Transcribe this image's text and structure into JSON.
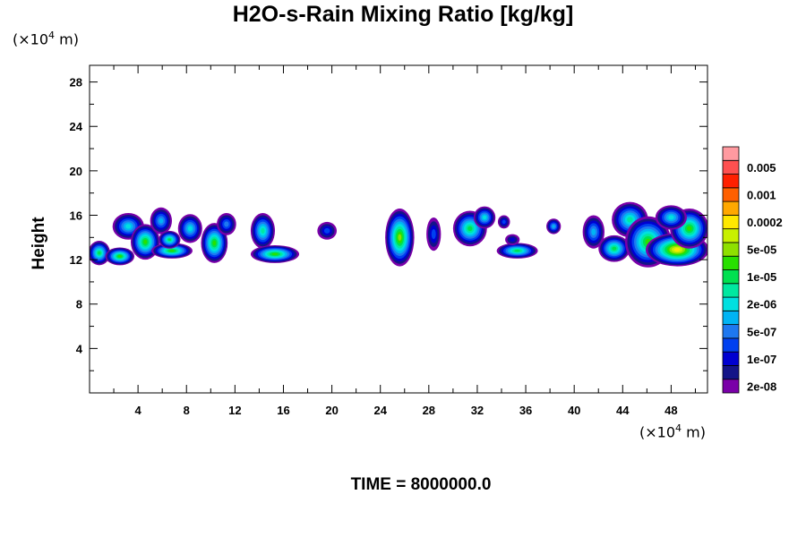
{
  "chart_data": {
    "type": "heatmap",
    "title": "H2O-s-Rain Mixing Ratio [kg/kg]",
    "xlabel": "",
    "ylabel": "Height",
    "x_unit_prefix": "(×10",
    "x_unit_exp": "4",
    "x_unit_suffix": " m)",
    "y_unit_prefix": "(×10",
    "y_unit_exp": "4",
    "y_unit_suffix": " m)",
    "xlim": [
      0,
      51
    ],
    "ylim": [
      0,
      29.5
    ],
    "xticks": [
      4,
      8,
      12,
      16,
      20,
      24,
      28,
      32,
      36,
      40,
      44,
      48
    ],
    "yticks": [
      4,
      8,
      12,
      16,
      20,
      24,
      28
    ],
    "grid": false,
    "footer": "TIME = 8000000.0",
    "colorbar": {
      "placement": "right",
      "colors": [
        "#7a00a8",
        "#141488",
        "#0000d0",
        "#0040f0",
        "#1e78f0",
        "#00b4f4",
        "#00e0e0",
        "#00e8a0",
        "#00e050",
        "#28e000",
        "#8ee000",
        "#c8f000",
        "#ffe800",
        "#ffa800",
        "#ff6000",
        "#ff2000",
        "#ff5050",
        "#ff9aa0"
      ],
      "labels": [
        "2e-08",
        "1e-07",
        "5e-07",
        "2e-06",
        "1e-05",
        "5e-05",
        "0.0002",
        "0.001",
        "0.005"
      ]
    },
    "cells": [
      {
        "x": 0.8,
        "y": 12.6,
        "rx": 0.9,
        "ry": 1.1,
        "peak": 8
      },
      {
        "x": 2.5,
        "y": 12.3,
        "rx": 1.2,
        "ry": 0.8,
        "peak": 9
      },
      {
        "x": 3.2,
        "y": 15.0,
        "rx": 1.3,
        "ry": 1.2,
        "peak": 6
      },
      {
        "x": 4.6,
        "y": 13.6,
        "rx": 1.2,
        "ry": 1.6,
        "peak": 9
      },
      {
        "x": 5.9,
        "y": 15.5,
        "rx": 0.9,
        "ry": 1.2,
        "peak": 5
      },
      {
        "x": 6.8,
        "y": 12.8,
        "rx": 1.7,
        "ry": 0.7,
        "peak": 9
      },
      {
        "x": 6.6,
        "y": 13.8,
        "rx": 0.9,
        "ry": 0.8,
        "peak": 8
      },
      {
        "x": 8.3,
        "y": 14.8,
        "rx": 1.0,
        "ry": 1.3,
        "peak": 6
      },
      {
        "x": 10.3,
        "y": 13.5,
        "rx": 1.1,
        "ry": 1.8,
        "peak": 9
      },
      {
        "x": 11.3,
        "y": 15.2,
        "rx": 0.8,
        "ry": 1.0,
        "peak": 4
      },
      {
        "x": 14.3,
        "y": 14.6,
        "rx": 1.0,
        "ry": 1.6,
        "peak": 7
      },
      {
        "x": 15.3,
        "y": 12.5,
        "rx": 2.0,
        "ry": 0.8,
        "peak": 9
      },
      {
        "x": 19.6,
        "y": 14.6,
        "rx": 0.8,
        "ry": 0.8,
        "peak": 3
      },
      {
        "x": 25.6,
        "y": 14.0,
        "rx": 1.2,
        "ry": 2.6,
        "peak": 10
      },
      {
        "x": 28.4,
        "y": 14.3,
        "rx": 0.6,
        "ry": 1.5,
        "peak": 3
      },
      {
        "x": 31.4,
        "y": 14.8,
        "rx": 1.4,
        "ry": 1.6,
        "peak": 8
      },
      {
        "x": 32.6,
        "y": 15.8,
        "rx": 0.9,
        "ry": 1.0,
        "peak": 6
      },
      {
        "x": 34.2,
        "y": 15.4,
        "rx": 0.5,
        "ry": 0.6,
        "peak": 3
      },
      {
        "x": 35.3,
        "y": 12.8,
        "rx": 1.7,
        "ry": 0.7,
        "peak": 8
      },
      {
        "x": 34.9,
        "y": 13.8,
        "rx": 0.6,
        "ry": 0.5,
        "peak": 2
      },
      {
        "x": 38.3,
        "y": 15.0,
        "rx": 0.6,
        "ry": 0.7,
        "peak": 5
      },
      {
        "x": 41.6,
        "y": 14.5,
        "rx": 0.9,
        "ry": 1.5,
        "peak": 5
      },
      {
        "x": 43.3,
        "y": 13.0,
        "rx": 1.3,
        "ry": 1.2,
        "peak": 8
      },
      {
        "x": 44.6,
        "y": 15.6,
        "rx": 1.5,
        "ry": 1.6,
        "peak": 7
      },
      {
        "x": 46.1,
        "y": 13.6,
        "rx": 1.9,
        "ry": 2.3,
        "peak": 9
      },
      {
        "x": 48.5,
        "y": 12.9,
        "rx": 2.6,
        "ry": 1.5,
        "peak": 12
      },
      {
        "x": 49.5,
        "y": 14.8,
        "rx": 1.6,
        "ry": 1.8,
        "peak": 9
      },
      {
        "x": 48.0,
        "y": 15.8,
        "rx": 1.3,
        "ry": 1.1,
        "peak": 6
      }
    ]
  }
}
